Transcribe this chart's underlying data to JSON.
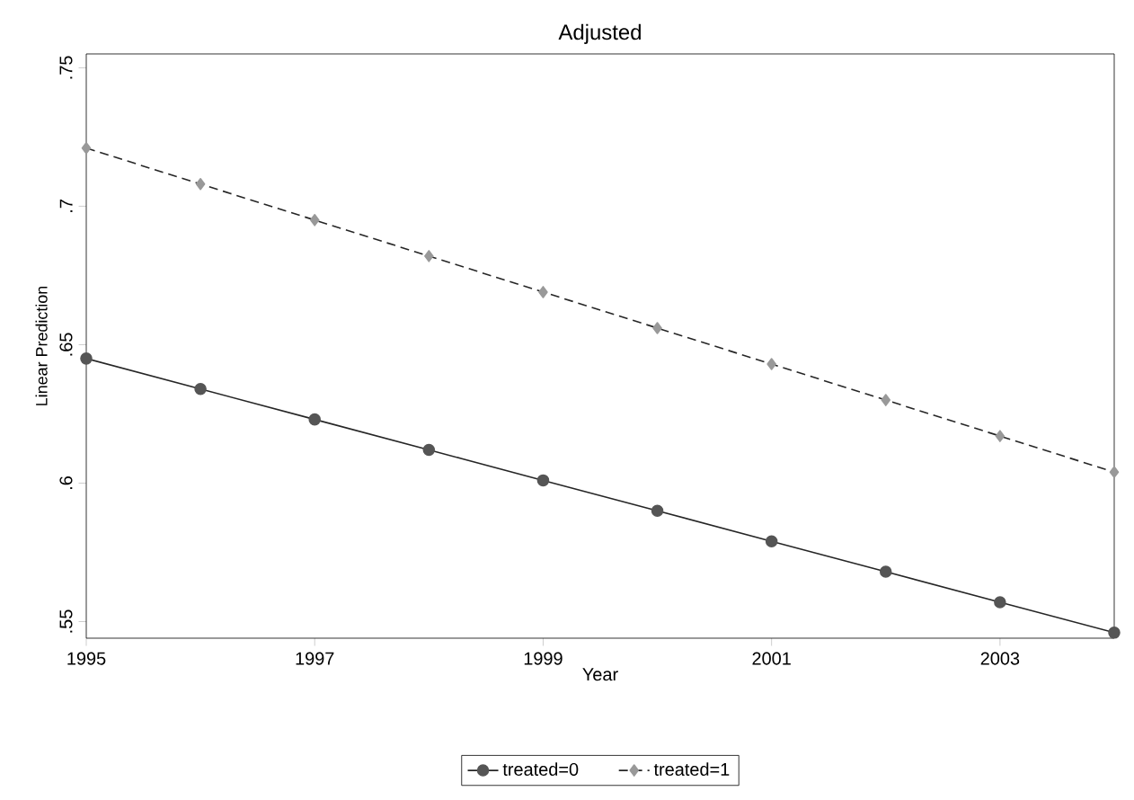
{
  "chart_data": {
    "type": "line",
    "title": "Adjusted",
    "xlabel": "Year",
    "ylabel": "Linear Prediction",
    "x": [
      1995,
      1996,
      1997,
      1998,
      1999,
      2000,
      2001,
      2002,
      2003,
      2004
    ],
    "series": [
      {
        "name": "treated=0",
        "color": "#555555",
        "marker": "circle",
        "line_style": "solid",
        "values": [
          0.645,
          0.634,
          0.623,
          0.612,
          0.601,
          0.59,
          0.579,
          0.568,
          0.557,
          0.546
        ]
      },
      {
        "name": "treated=1",
        "color": "#999999",
        "marker": "diamond",
        "line_style": "dashed",
        "values": [
          0.721,
          0.708,
          0.695,
          0.682,
          0.669,
          0.656,
          0.643,
          0.63,
          0.617,
          0.604
        ]
      }
    ],
    "xlim": [
      1995,
      2004
    ],
    "xticks": [
      1995,
      1997,
      1999,
      2001,
      2003
    ],
    "ylim": [
      0.544,
      0.755
    ],
    "yticks": [
      {
        "value": 0.55,
        "label": ".55"
      },
      {
        "value": 0.6,
        "label": ".6"
      },
      {
        "value": 0.65,
        "label": ".65"
      },
      {
        "value": 0.7,
        "label": ".7"
      },
      {
        "value": 0.75,
        "label": ".75"
      }
    ],
    "grid": false,
    "legend": "bottom"
  }
}
